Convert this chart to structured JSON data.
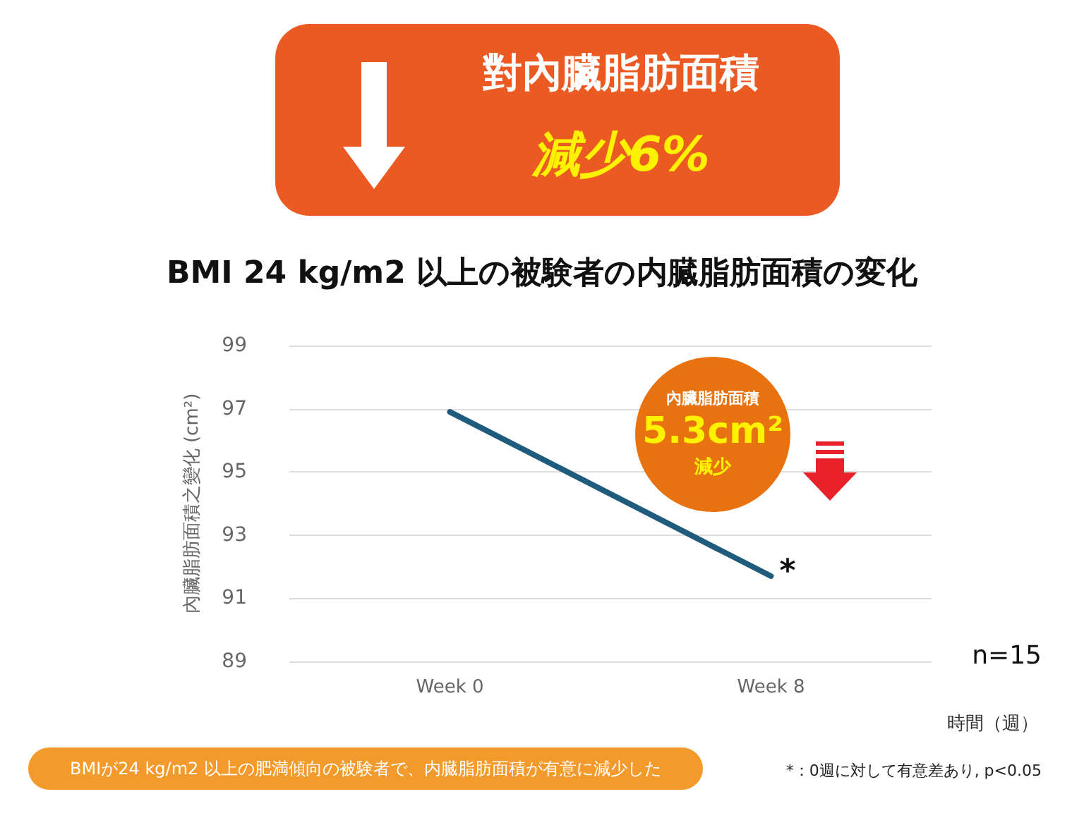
{
  "chart_data": {
    "type": "line",
    "title": "BMI 24 kg/m2 以上の被験者の内臓脂肪面積の変化",
    "categories": [
      "Week 0",
      "Week 8"
    ],
    "series": [
      {
        "color": "#1e5b7c",
        "values": [
          96.9,
          91.7
        ]
      }
    ],
    "ylim": [
      89,
      99
    ],
    "yticks": [
      89,
      91,
      93,
      95,
      97,
      99
    ],
    "ylabel": "內臟脂肪面積之變化 (cm²)",
    "xlabel": "時間（週）",
    "grid": "y",
    "marker": "none",
    "line_style": "solid",
    "annotations": [
      "對內臟脂肪面積",
      "減少6%",
      "內臟脂肪面積",
      "5.3cm²",
      "減少",
      {
        "text": "*",
        "x": "Week 8",
        "y": 91.7
      },
      "n=15",
      "BMIが24 kg/m2 以上の肥満傾向の被験者で、内臓脂肪面積が有意に減少した",
      "*：0週に対して有意差あり, p<0.05"
    ]
  }
}
